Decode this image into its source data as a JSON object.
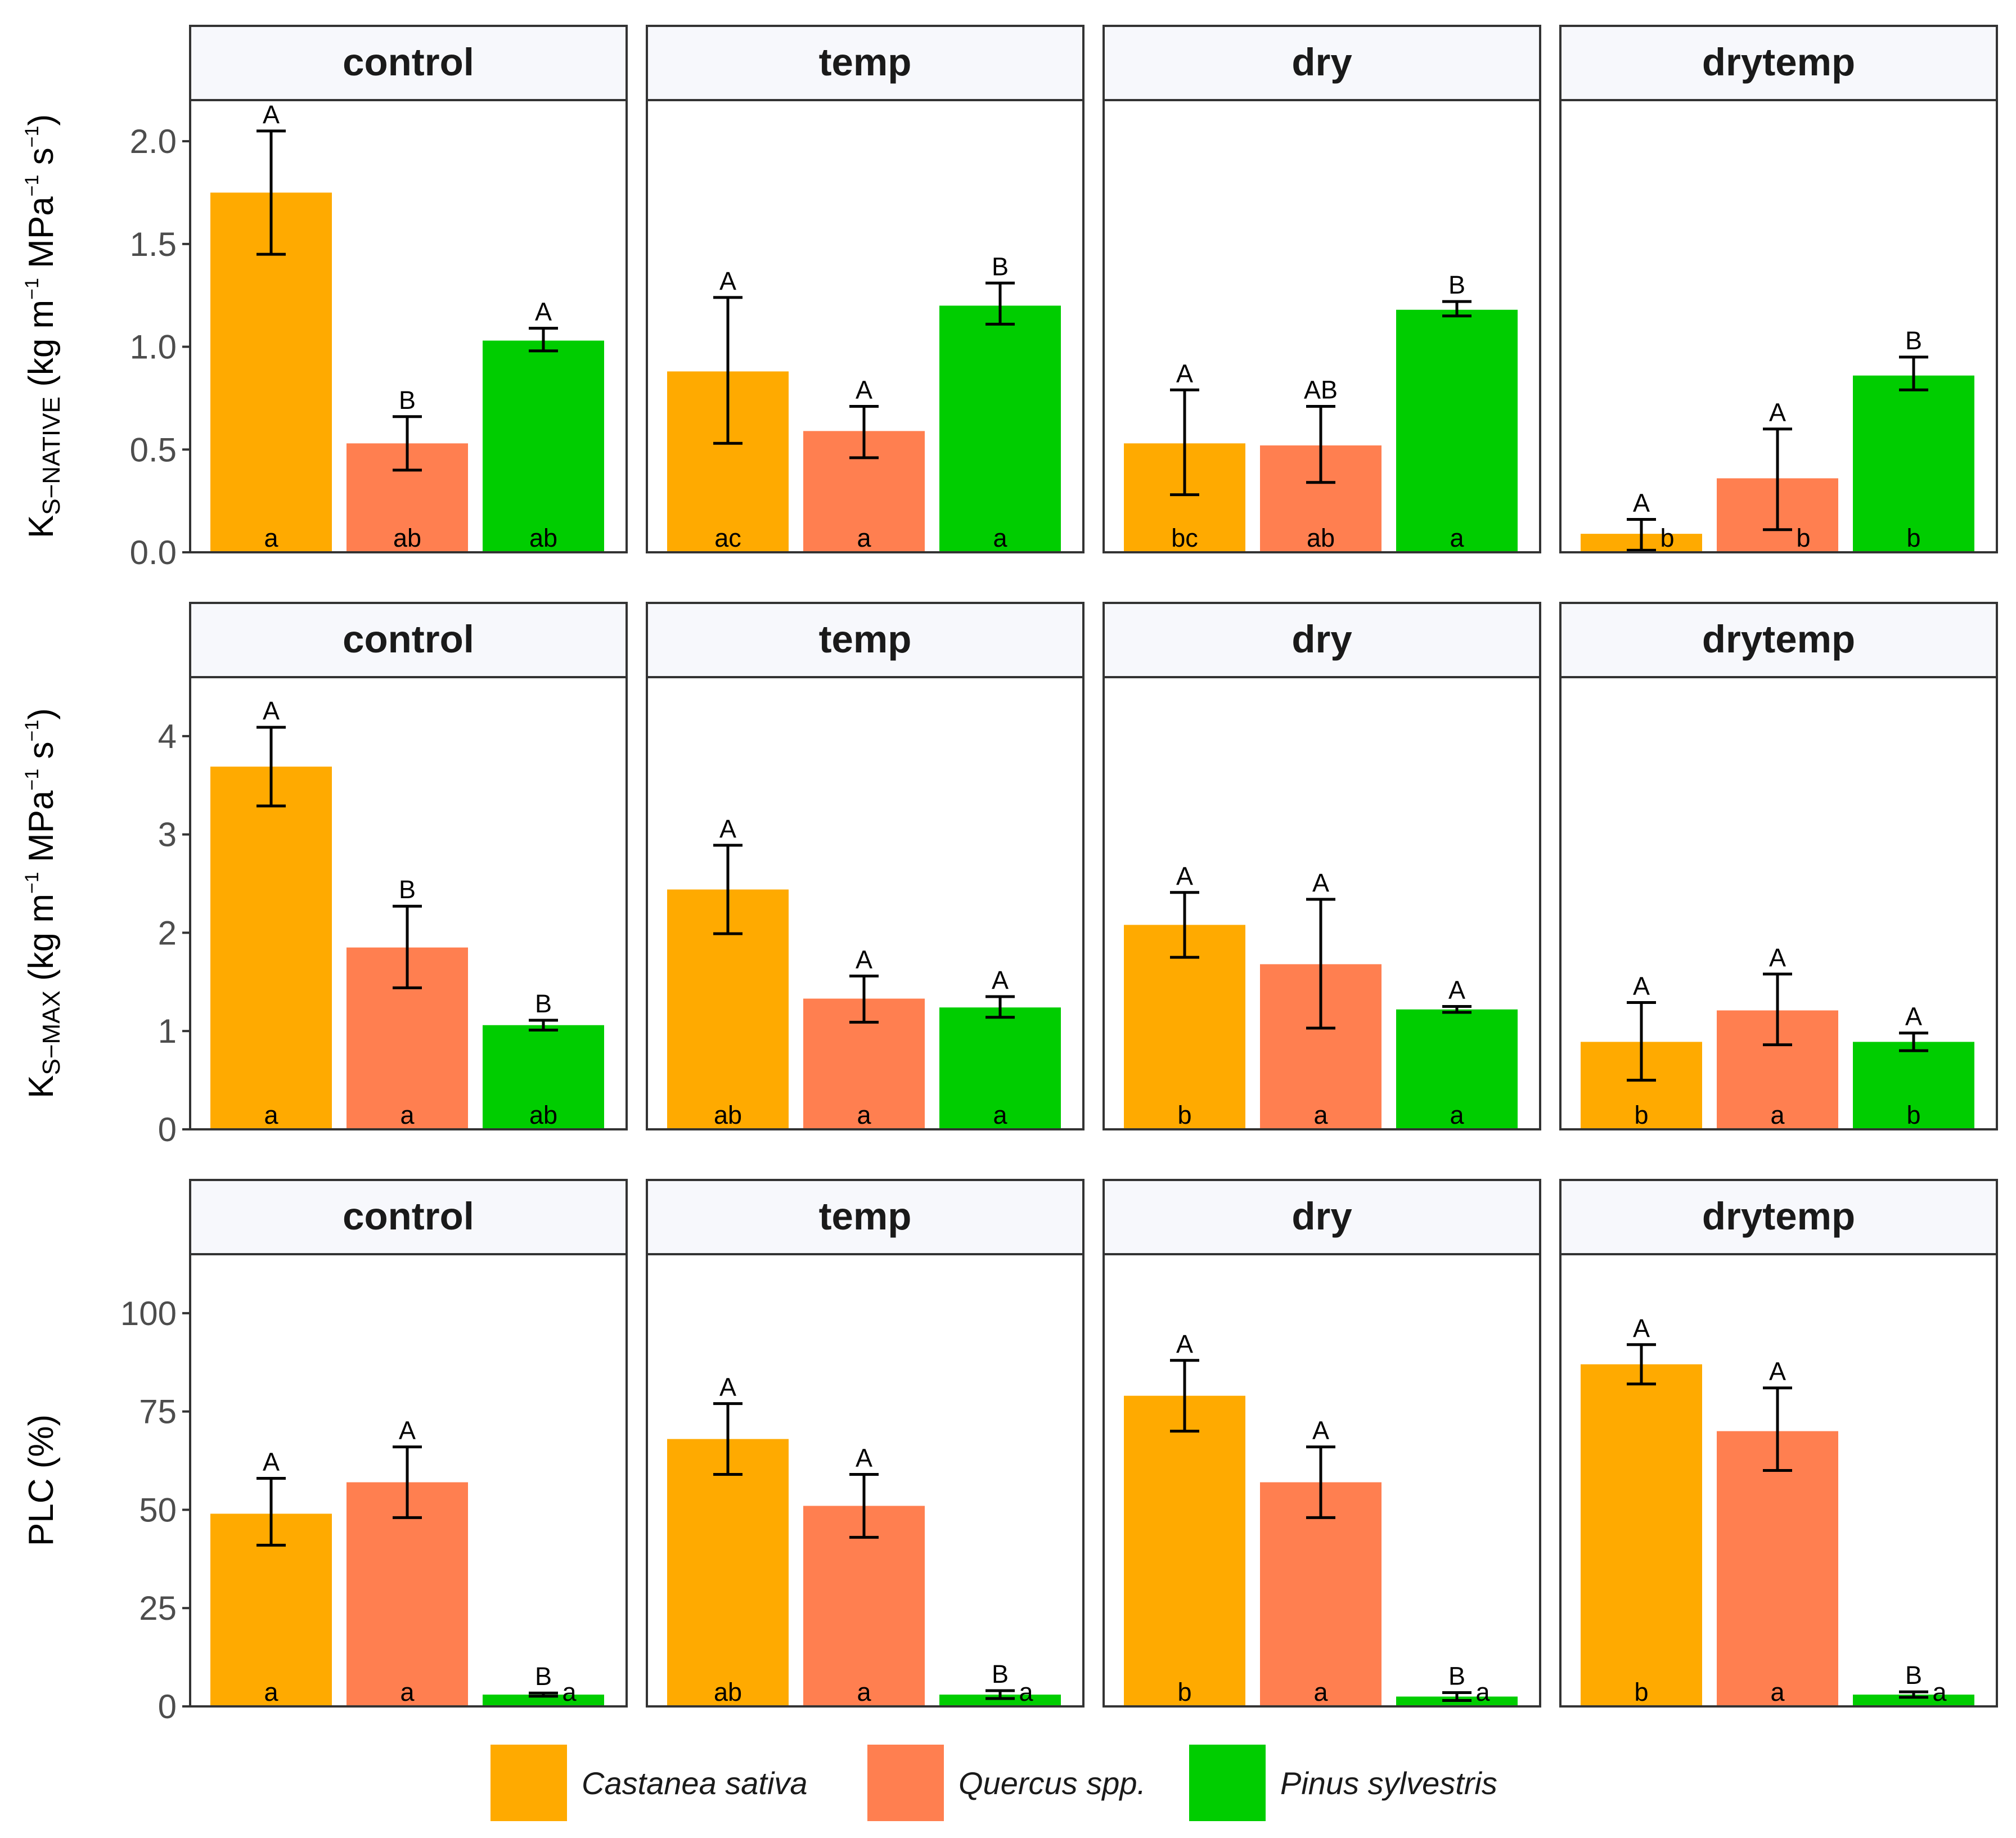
{
  "figure": {
    "facets": [
      "control",
      "temp",
      "dry",
      "drytemp"
    ],
    "species": [
      "Castanea sativa",
      "Quercus spp.",
      "Pinus sylvestris"
    ],
    "colors": [
      "#FFAA00",
      "#FF7F50",
      "#00CD00"
    ]
  },
  "chart_data": [
    {
      "type": "bar",
      "id": "ks-native",
      "ylabel": {
        "main": "K",
        "sub": "S−NATIVE",
        "unit": "(kg m",
        "sup1": "−1",
        "mpa": " MPa",
        "sup2": "−1",
        "s": " s",
        "sup3": "−1",
        "close": ")"
      },
      "ylim": [
        0,
        2.2
      ],
      "yticks": [
        0,
        0.5,
        1,
        1.5,
        2
      ],
      "ytick_labels": [
        "0.0",
        "0.5",
        "1.0",
        "1.5",
        "2.0"
      ],
      "categories": [
        "control",
        "temp",
        "dry",
        "drytemp"
      ],
      "series": [
        {
          "name": "Castanea sativa",
          "values": [
            1.75,
            0.88,
            0.53,
            0.09
          ],
          "err_low": [
            1.45,
            0.53,
            0.28,
            0.01
          ],
          "err_high": [
            2.05,
            1.24,
            0.79,
            0.16
          ],
          "letter_upper": [
            "A",
            "A",
            "A",
            "A"
          ],
          "letter_lower": [
            "a",
            "ac",
            "bc",
            "b"
          ]
        },
        {
          "name": "Quercus spp.",
          "values": [
            0.53,
            0.59,
            0.52,
            0.36
          ],
          "err_low": [
            0.4,
            0.46,
            0.34,
            0.11
          ],
          "err_high": [
            0.66,
            0.71,
            0.71,
            0.6
          ],
          "letter_upper": [
            "B",
            "A",
            "AB",
            "A"
          ],
          "letter_lower": [
            "ab",
            "a",
            "ab",
            "b"
          ]
        },
        {
          "name": "Pinus sylvestris",
          "values": [
            1.03,
            1.2,
            1.18,
            0.86
          ],
          "err_low": [
            0.98,
            1.11,
            1.15,
            0.79
          ],
          "err_high": [
            1.09,
            1.31,
            1.22,
            0.95
          ],
          "letter_upper": [
            "A",
            "B",
            "B",
            "B"
          ],
          "letter_lower": [
            "ab",
            "a",
            "a",
            "b"
          ]
        }
      ]
    },
    {
      "type": "bar",
      "id": "ks-max",
      "ylabel": {
        "main": "K",
        "sub": "S−MAX",
        "unit": "(kg m",
        "sup1": "−1",
        "mpa": " MPa",
        "sup2": "−1",
        "s": " s",
        "sup3": "−1",
        "close": ")"
      },
      "ylim": [
        0,
        4.6
      ],
      "yticks": [
        0,
        1,
        2,
        3,
        4
      ],
      "ytick_labels": [
        "0",
        "1",
        "2",
        "3",
        "4"
      ],
      "categories": [
        "control",
        "temp",
        "dry",
        "drytemp"
      ],
      "series": [
        {
          "name": "Castanea sativa",
          "values": [
            3.69,
            2.44,
            2.08,
            0.89
          ],
          "err_low": [
            3.29,
            1.99,
            1.75,
            0.5
          ],
          "err_high": [
            4.09,
            2.89,
            2.41,
            1.29
          ],
          "letter_upper": [
            "A",
            "A",
            "A",
            "A"
          ],
          "letter_lower": [
            "a",
            "ab",
            "b",
            "b"
          ]
        },
        {
          "name": "Quercus spp.",
          "values": [
            1.85,
            1.33,
            1.68,
            1.21
          ],
          "err_low": [
            1.44,
            1.09,
            1.03,
            0.86
          ],
          "err_high": [
            2.27,
            1.56,
            2.34,
            1.58
          ],
          "letter_upper": [
            "B",
            "A",
            "A",
            "A"
          ],
          "letter_lower": [
            "a",
            "a",
            "a",
            "a"
          ]
        },
        {
          "name": "Pinus sylvestris",
          "values": [
            1.06,
            1.24,
            1.22,
            0.89
          ],
          "err_low": [
            1.01,
            1.14,
            1.19,
            0.8
          ],
          "err_high": [
            1.11,
            1.35,
            1.25,
            0.98
          ],
          "letter_upper": [
            "B",
            "A",
            "A",
            "A"
          ],
          "letter_lower": [
            "ab",
            "a",
            "a",
            "b"
          ]
        }
      ]
    },
    {
      "type": "bar",
      "id": "plc",
      "ylabel": {
        "main": "PLC (%)"
      },
      "ylim": [
        0,
        115
      ],
      "yticks": [
        0,
        25,
        50,
        75,
        100
      ],
      "ytick_labels": [
        "0",
        "25",
        "50",
        "75",
        "100"
      ],
      "categories": [
        "control",
        "temp",
        "dry",
        "drytemp"
      ],
      "series": [
        {
          "name": "Castanea sativa",
          "values": [
            49,
            68,
            79,
            87
          ],
          "err_low": [
            41,
            59,
            70,
            82
          ],
          "err_high": [
            58,
            77,
            88,
            92
          ],
          "letter_upper": [
            "A",
            "A",
            "A",
            "A"
          ],
          "letter_lower": [
            "a",
            "ab",
            "b",
            "b"
          ]
        },
        {
          "name": "Quercus spp.",
          "values": [
            57,
            51,
            57,
            70
          ],
          "err_low": [
            48,
            43,
            48,
            60
          ],
          "err_high": [
            66,
            59,
            66,
            81
          ],
          "letter_upper": [
            "A",
            "A",
            "A",
            "A"
          ],
          "letter_lower": [
            "a",
            "a",
            "a",
            "a"
          ]
        },
        {
          "name": "Pinus sylvestris",
          "values": [
            3,
            3,
            2.5,
            3
          ],
          "err_low": [
            2.6,
            2,
            1.5,
            2.3
          ],
          "err_high": [
            3.4,
            4,
            3.5,
            3.7
          ],
          "letter_upper": [
            "B",
            "B",
            "B",
            "B"
          ],
          "letter_lower": [
            "a",
            "a",
            "a",
            "a"
          ]
        }
      ]
    }
  ]
}
